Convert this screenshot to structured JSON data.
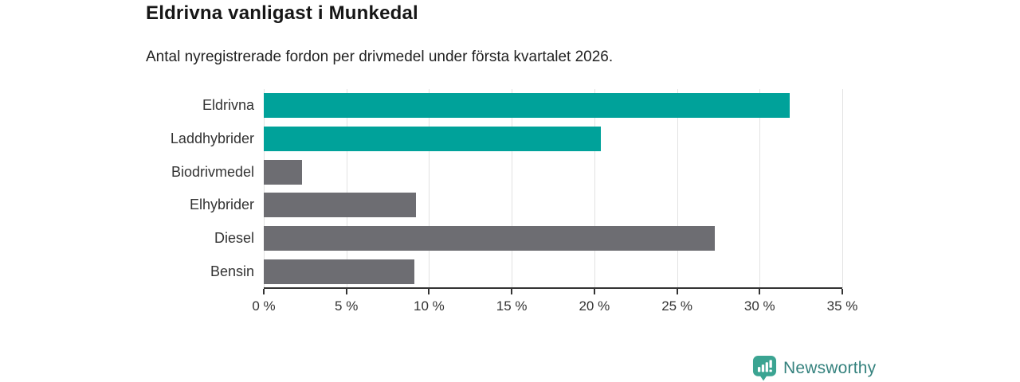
{
  "header": {
    "title": "Eldrivna vanligast i Munkedal",
    "subtitle": "Antal nyregistrerade fordon per drivmedel under första kvartalet 2026."
  },
  "chart_data": {
    "type": "bar",
    "orientation": "horizontal",
    "title": "Eldrivna vanligast i Munkedal",
    "subtitle": "Antal nyregistrerade fordon per drivmedel under första kvartalet 2026.",
    "categories": [
      "Eldrivna",
      "Laddhybrider",
      "Biodrivmedel",
      "Elhybrider",
      "Diesel",
      "Bensin"
    ],
    "values": [
      31.8,
      20.4,
      2.3,
      9.2,
      27.3,
      9.1
    ],
    "unit": "%",
    "bar_colors": [
      "#00a29a",
      "#00a29a",
      "#6d6d72",
      "#6d6d72",
      "#6d6d72",
      "#6d6d72"
    ],
    "highlight_color": "#00a29a",
    "default_color": "#6d6d72",
    "xlim": [
      0,
      35
    ],
    "x_ticks": [
      0,
      5,
      10,
      15,
      20,
      25,
      30,
      35
    ],
    "x_tick_labels": [
      "0 %",
      "5 %",
      "10 %",
      "15 %",
      "20 %",
      "25 %",
      "30 %",
      "35 %"
    ],
    "grid": true,
    "legend": false,
    "xlabel": "",
    "ylabel": ""
  },
  "branding": {
    "logo_text": "Newsworthy",
    "text_color": "#35827e",
    "icon_color": "#3ba492",
    "icon_name": "newsworthy-bar-chart-pin-icon"
  }
}
